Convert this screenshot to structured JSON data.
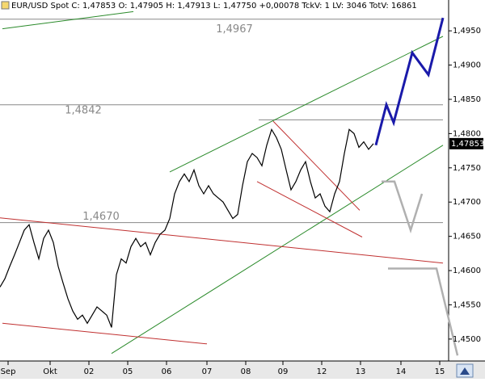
{
  "chart_data": {
    "type": "line",
    "title": "EUR/USD Spot C: 1,47853 O: 1,47905 H: 1,47913 L: 1,47750 +0,00078 TckV: 1 LV: 3046 TotV: 16861",
    "last_price_label": "1,47853",
    "xlim": [
      0,
      274
    ],
    "ylim": [
      1.4468,
      1.4995
    ],
    "xticks": [
      {
        "value": 5,
        "label": "Sep"
      },
      {
        "value": 31,
        "label": "Okt"
      },
      {
        "value": 55,
        "label": "02"
      },
      {
        "value": 79,
        "label": "05"
      },
      {
        "value": 103,
        "label": "06"
      },
      {
        "value": 128,
        "label": "07"
      },
      {
        "value": 152,
        "label": "08"
      },
      {
        "value": 175,
        "label": "09"
      },
      {
        "value": 199,
        "label": "12"
      },
      {
        "value": 223,
        "label": "13"
      },
      {
        "value": 248,
        "label": "14"
      },
      {
        "value": 272,
        "label": "15"
      }
    ],
    "yticks": [
      {
        "value": 1.495,
        "label": "1,4950"
      },
      {
        "value": 1.49,
        "label": "1,4900"
      },
      {
        "value": 1.485,
        "label": "1,4850"
      },
      {
        "value": 1.48,
        "label": "1,4800"
      },
      {
        "value": 1.475,
        "label": "1,4750"
      },
      {
        "value": 1.47,
        "label": "1,4700"
      },
      {
        "value": 1.465,
        "label": "1,4650"
      },
      {
        "value": 1.46,
        "label": "1,4600"
      },
      {
        "value": 1.455,
        "label": "1,4550"
      },
      {
        "value": 1.45,
        "label": "1,4500"
      }
    ],
    "series": [
      {
        "color": "#000000",
        "x": [
          0,
          3,
          6,
          9,
          12,
          15,
          18,
          21,
          24,
          27,
          30,
          33,
          36,
          39,
          42,
          45,
          48,
          51,
          54,
          57,
          60,
          63,
          66,
          69,
          72,
          75,
          78,
          81,
          84,
          87,
          90,
          93,
          96,
          99,
          102,
          105,
          108,
          111,
          114,
          117,
          120,
          123,
          126,
          129,
          132,
          135,
          138,
          141,
          144,
          147,
          150,
          153,
          156,
          159,
          162,
          165,
          168,
          171,
          174,
          177,
          180,
          183,
          186,
          189,
          192,
          195,
          198,
          201,
          204,
          207,
          210,
          213,
          216,
          219,
          222,
          225,
          228,
          231
        ],
        "values": [
          1.4576,
          1.4588,
          1.4606,
          1.4623,
          1.4641,
          1.4659,
          1.4667,
          1.4641,
          1.4617,
          1.4647,
          1.4659,
          1.4641,
          1.4606,
          1.4582,
          1.4559,
          1.4541,
          1.4529,
          1.4535,
          1.4523,
          1.4535,
          1.4547,
          1.4541,
          1.4535,
          1.4517,
          1.4594,
          1.4617,
          1.4611,
          1.4635,
          1.4647,
          1.4635,
          1.4641,
          1.4623,
          1.4641,
          1.4653,
          1.4659,
          1.4676,
          1.4712,
          1.473,
          1.4741,
          1.473,
          1.4747,
          1.4724,
          1.4712,
          1.4724,
          1.4712,
          1.4706,
          1.47,
          1.4688,
          1.4676,
          1.4682,
          1.4724,
          1.4759,
          1.4771,
          1.4765,
          1.4753,
          1.4783,
          1.4806,
          1.4794,
          1.4777,
          1.4747,
          1.4718,
          1.473,
          1.4747,
          1.4759,
          1.473,
          1.4706,
          1.4712,
          1.4694,
          1.4686,
          1.4712,
          1.473,
          1.4771,
          1.4806,
          1.48,
          1.478,
          1.4788,
          1.4777,
          1.47853
        ]
      }
    ],
    "levels": [
      {
        "value": 1.4967,
        "label": "1,4967",
        "color": "#888888"
      },
      {
        "value": 1.4842,
        "label": "1,4842",
        "color": "#888888"
      },
      {
        "value": 1.467,
        "label": "1,4670",
        "color": "#888888"
      }
    ],
    "level_segment": {
      "value": 1.482,
      "x": [
        160,
        274
      ],
      "color": "#888888"
    },
    "trendlines": [
      {
        "color": "#2a8a2a",
        "x": [
          105,
          274
        ],
        "y": [
          1.4744,
          1.4942
        ]
      },
      {
        "color": "#2a8a2a",
        "x": [
          69,
          274
        ],
        "y": [
          1.4479,
          1.4783
        ]
      },
      {
        "color": "#2a8a2a",
        "x": [
          1.5,
          82.5
        ],
        "y": [
          1.4953,
          1.4978
        ]
      },
      {
        "color": "#c03030",
        "x": [
          0,
          274
        ],
        "y": [
          1.4677,
          1.4611
        ]
      },
      {
        "color": "#c03030",
        "x": [
          1.5,
          128
        ],
        "y": [
          1.4523,
          1.4493
        ]
      },
      {
        "color": "#c03030",
        "x": [
          169,
          222.5
        ],
        "y": [
          1.4818,
          1.4688
        ]
      },
      {
        "color": "#c03030",
        "x": [
          159,
          224
        ],
        "y": [
          1.473,
          1.4649
        ]
      },
      {
        "color": "#1a1aaa",
        "x": [
          232.5,
          239,
          243.5,
          255,
          265,
          274
        ],
        "y": [
          1.4783,
          1.4842,
          1.4816,
          1.4918,
          1.4886,
          1.4969
        ]
      },
      {
        "color": "#b0b0b0",
        "x": [
          236,
          244,
          254,
          261
        ],
        "y": [
          1.473,
          1.473,
          1.4659,
          1.4712
        ]
      },
      {
        "color": "#b0b0b0",
        "x": [
          240,
          270,
          283
        ],
        "y": [
          1.4603,
          1.4603,
          1.4476
        ]
      }
    ]
  }
}
